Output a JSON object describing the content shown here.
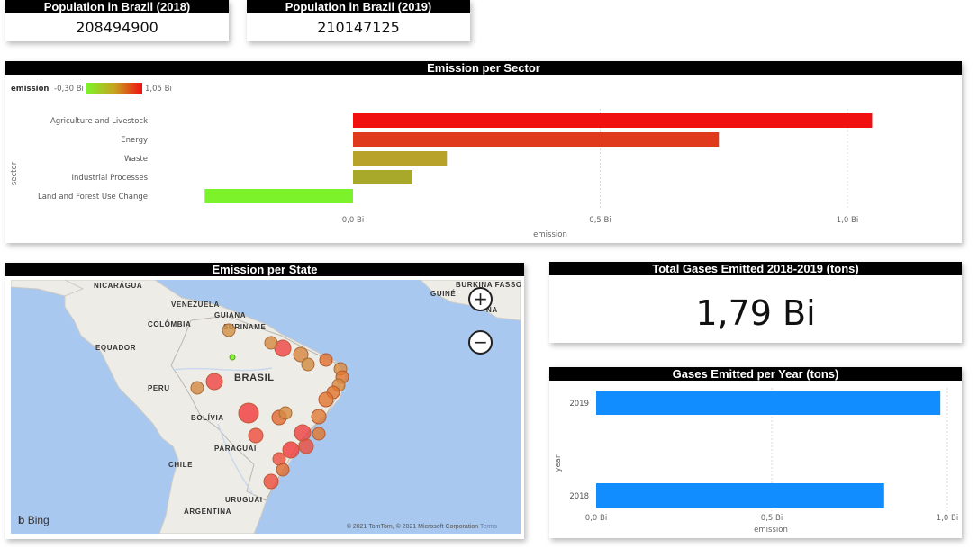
{
  "kpi_2018": {
    "title": "Population in Brazil (2018)",
    "value": "208494900"
  },
  "kpi_2019": {
    "title": "Population in Brazil (2019)",
    "value": "210147125"
  },
  "sector_chart": {
    "title": "Emission per Sector",
    "legend": {
      "title": "emission",
      "min_label": "-0,30 Bi",
      "max_label": "1,05 Bi",
      "min_color": "#7cf22a",
      "max_color": "#f01010"
    }
  },
  "state_map": {
    "title": "Emission per State",
    "labels": {
      "nicaragua": "NICARÁGUA",
      "venezuela": "VENEZUELA",
      "guiana": "GUIANA",
      "suriname": "SURINAME",
      "colombia": "COLÔMBIA",
      "equador": "EQUADOR",
      "peru": "PERU",
      "brasil": "BRASIL",
      "bolivia": "BOLÍVIA",
      "paraguai": "PARAGUAI",
      "chile": "CHILE",
      "uruguai": "URUGUAI",
      "argentina": "ARGENTINA",
      "guine": "GUINÉ",
      "burkina": "BURKINA FASSO",
      "guine2": "NA"
    },
    "zoom_in": "+",
    "zoom_out": "−",
    "bing": "Bing",
    "copyright": "© 2021 TomTom, © 2021 Microsoft Corporation",
    "terms": "Terms"
  },
  "total_kpi": {
    "title": "Total Gases Emitted 2018-2019 (tons)",
    "value": "1,79 Bi"
  },
  "year_chart": {
    "title": "Gases Emitted per Year (tons)"
  },
  "chart_data": [
    {
      "type": "bar",
      "orientation": "horizontal",
      "title": "Emission per Sector",
      "xlabel": "emission",
      "ylabel": "sector",
      "categories": [
        "Agriculture and Livestock",
        "Energy",
        "Waste",
        "Industrial Processes",
        "Land and Forest Use Change"
      ],
      "values": [
        1.05,
        0.74,
        0.19,
        0.12,
        -0.3
      ],
      "colors": [
        "#f01010",
        "#e03a1c",
        "#b8a22a",
        "#a8a82a",
        "#7cf22a"
      ],
      "unit": "Bi",
      "xlim": [
        -0.3,
        1.05
      ],
      "xticks": [
        0.0,
        0.5,
        1.0
      ],
      "xtick_labels": [
        "0,0 Bi",
        "0,5 Bi",
        "1,0 Bi"
      ],
      "legend": "top-left",
      "grid": true
    },
    {
      "type": "bar",
      "orientation": "horizontal",
      "title": "Gases Emitted per Year (tons)",
      "xlabel": "emission",
      "ylabel": "year",
      "categories": [
        "2019",
        "2018"
      ],
      "values": [
        0.98,
        0.82
      ],
      "color": "#118dff",
      "unit": "Bi",
      "xlim": [
        0,
        1.0
      ],
      "xticks": [
        0.0,
        0.5,
        1.0
      ],
      "xtick_labels": [
        "0,0 Bi",
        "0,5 Bi",
        "1,0 Bi"
      ],
      "grid": true
    }
  ]
}
